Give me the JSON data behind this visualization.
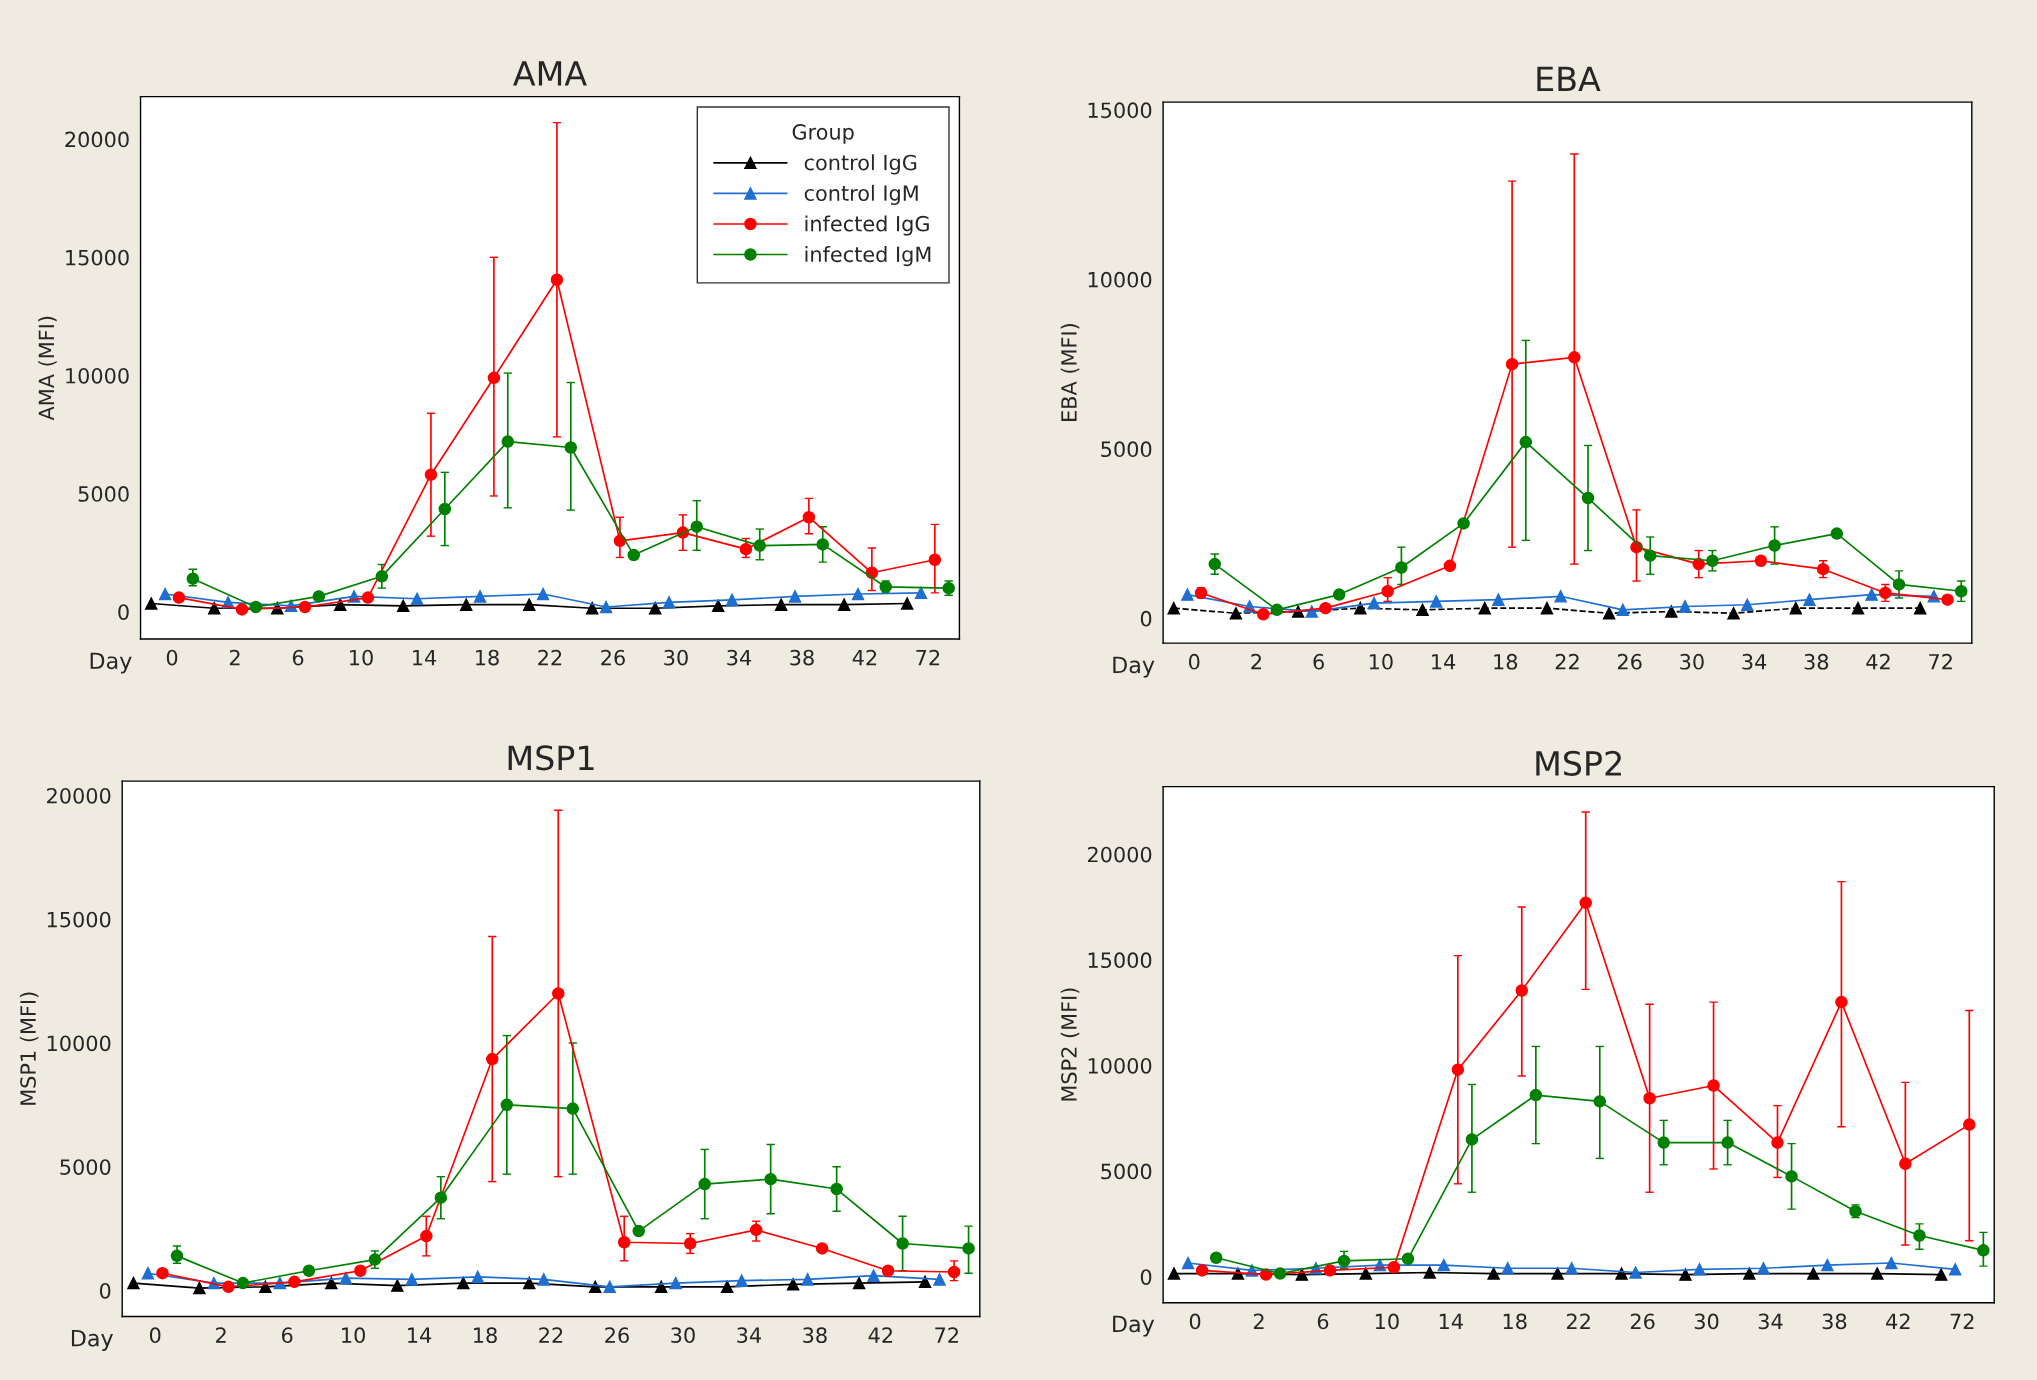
{
  "chart_data": [
    {
      "type": "line",
      "title": "AMA",
      "xlabel": "Day",
      "ylabel": "AMA (MFI)",
      "legend": "top right",
      "legend_title": "Group",
      "categories": [
        "0",
        "2",
        "6",
        "10",
        "14",
        "18",
        "22",
        "26",
        "30",
        "34",
        "38",
        "42",
        "72"
      ],
      "ylim": [
        -1150,
        21800
      ],
      "yticks": [
        0,
        5000,
        10000,
        15000,
        20000
      ],
      "series": [
        {
          "name": "control IgG",
          "color": "#000000",
          "marker": "triangle",
          "line_style": "solid",
          "values": [
            350,
            150,
            150,
            300,
            250,
            300,
            300,
            150,
            150,
            250,
            300,
            300,
            350
          ]
        },
        {
          "name": "control IgM",
          "color": "#1f6fd0",
          "marker": "triangle",
          "line_style": "solid",
          "values": [
            750,
            400,
            250,
            650,
            550,
            650,
            750,
            200,
            400,
            500,
            650,
            750,
            800
          ]
        },
        {
          "name": "infected IgG",
          "color": "#ff0000",
          "marker": "circle",
          "line_style": "solid",
          "values": [
            600,
            100,
            200,
            600,
            5800,
            9900,
            14050,
            3000,
            3350,
            2650,
            4000,
            1650,
            2200
          ],
          "errors": [
            null,
            null,
            null,
            null,
            [
              3200,
              8400
            ],
            [
              4900,
              15000
            ],
            [
              7400,
              20700
            ],
            [
              2300,
              4000
            ],
            [
              2600,
              4100
            ],
            [
              2300,
              3100
            ],
            [
              3300,
              4800
            ],
            [
              900,
              2700
            ],
            [
              800,
              3700
            ]
          ]
        },
        {
          "name": "infected IgM",
          "color": "#008000",
          "marker": "circle",
          "line_style": "solid",
          "values": [
            1400,
            200,
            650,
            1500,
            4350,
            7200,
            6950,
            2400,
            3600,
            2800,
            2850,
            1050,
            1000
          ],
          "errors": [
            [
              1100,
              1800
            ],
            null,
            null,
            [
              1000,
              2000
            ],
            [
              2800,
              5900
            ],
            [
              4400,
              10100
            ],
            [
              4300,
              9700
            ],
            null,
            [
              2600,
              4700
            ],
            [
              2200,
              3500
            ],
            [
              2100,
              3600
            ],
            [
              800,
              1300
            ],
            [
              700,
              1300
            ]
          ]
        }
      ]
    },
    {
      "type": "line",
      "title": "EBA",
      "xlabel": "Day",
      "ylabel": "EBA (MFI)",
      "legend": false,
      "categories": [
        "0",
        "2",
        "6",
        "10",
        "14",
        "18",
        "22",
        "26",
        "30",
        "34",
        "38",
        "42",
        "72"
      ],
      "ylim": [
        -730,
        15230
      ],
      "yticks": [
        0,
        5000,
        10000,
        15000
      ],
      "series": [
        {
          "color": "#000000",
          "marker": "triangle",
          "line_style": "dashed",
          "values": [
            300,
            150,
            200,
            300,
            250,
            300,
            300,
            150,
            200,
            150,
            300,
            300,
            300
          ]
        },
        {
          "color": "#1f6fd0",
          "marker": "triangle",
          "line_style": "solid",
          "values": [
            700,
            350,
            200,
            450,
            500,
            550,
            650,
            250,
            350,
            400,
            550,
            700,
            650
          ]
        },
        {
          "color": "#ff0000",
          "marker": "circle",
          "line_style": "solid",
          "values": [
            750,
            120,
            300,
            800,
            1550,
            7500,
            7700,
            2100,
            1600,
            1700,
            1450,
            750,
            550
          ],
          "errors": [
            [
              600,
              900
            ],
            null,
            null,
            [
              500,
              1200
            ],
            null,
            [
              2100,
              12900
            ],
            [
              1600,
              13700
            ],
            [
              1100,
              3200
            ],
            [
              1200,
              2000
            ],
            null,
            [
              1200,
              1700
            ],
            [
              500,
              1000
            ],
            null
          ]
        },
        {
          "color": "#008000",
          "marker": "circle",
          "line_style": "solid",
          "values": [
            1600,
            250,
            700,
            1500,
            2800,
            5200,
            3550,
            1850,
            1700,
            2150,
            2500,
            1000,
            800
          ],
          "errors": [
            [
              1300,
              1900
            ],
            null,
            null,
            [
              1000,
              2100
            ],
            null,
            [
              2300,
              8200
            ],
            [
              2000,
              5100
            ],
            [
              1300,
              2400
            ],
            [
              1400,
              2000
            ],
            [
              1600,
              2700
            ],
            null,
            [
              600,
              1400
            ],
            [
              500,
              1100
            ]
          ]
        }
      ]
    },
    {
      "type": "line",
      "title": "MSP1",
      "xlabel": "Day",
      "ylabel": "MSP1 (MFI)",
      "legend": false,
      "categories": [
        "0",
        "2",
        "6",
        "10",
        "14",
        "18",
        "22",
        "26",
        "30",
        "34",
        "38",
        "42",
        "72"
      ],
      "ylim": [
        -1050,
        20580
      ],
      "yticks": [
        0,
        5000,
        10000,
        15000,
        20000
      ],
      "series": [
        {
          "color": "#000000",
          "marker": "triangle",
          "line_style": "solid",
          "values": [
            300,
            100,
            150,
            300,
            200,
            300,
            300,
            150,
            150,
            150,
            250,
            300,
            350
          ]
        },
        {
          "color": "#1f6fd0",
          "marker": "triangle",
          "line_style": "solid",
          "values": [
            700,
            300,
            300,
            500,
            450,
            550,
            450,
            150,
            300,
            400,
            450,
            600,
            450
          ]
        },
        {
          "color": "#ff0000",
          "marker": "circle",
          "line_style": "solid",
          "values": [
            700,
            150,
            350,
            800,
            2200,
            9350,
            12000,
            1950,
            1900,
            2450,
            1700,
            800,
            750
          ],
          "errors": [
            null,
            null,
            null,
            null,
            [
              1400,
              3000
            ],
            [
              4400,
              14300
            ],
            [
              4600,
              19400
            ],
            [
              1200,
              3000
            ],
            [
              1500,
              2300
            ],
            [
              2000,
              2800
            ],
            null,
            null,
            [
              400,
              1200
            ]
          ]
        },
        {
          "color": "#008000",
          "marker": "circle",
          "line_style": "solid",
          "values": [
            1400,
            300,
            800,
            1250,
            3750,
            7500,
            7350,
            2400,
            4300,
            4500,
            4100,
            1900,
            1700
          ],
          "errors": [
            [
              1100,
              1800
            ],
            null,
            null,
            [
              900,
              1600
            ],
            [
              2900,
              4600
            ],
            [
              4700,
              10300
            ],
            [
              4700,
              10000
            ],
            null,
            [
              2900,
              5700
            ],
            [
              3100,
              5900
            ],
            [
              3200,
              5000
            ],
            [
              800,
              3000
            ],
            [
              700,
              2600
            ]
          ]
        }
      ]
    },
    {
      "type": "line",
      "title": "MSP2",
      "xlabel": "Day",
      "ylabel": "MSP2 (MFI)",
      "legend": false,
      "categories": [
        "0",
        "2",
        "6",
        "10",
        "14",
        "18",
        "22",
        "26",
        "30",
        "34",
        "38",
        "42",
        "72"
      ],
      "ylim": [
        -1230,
        23200
      ],
      "yticks": [
        0,
        5000,
        10000,
        15000,
        20000
      ],
      "series": [
        {
          "color": "#000000",
          "marker": "triangle",
          "line_style": "solid",
          "values": [
            150,
            150,
            100,
            150,
            200,
            150,
            150,
            150,
            100,
            150,
            150,
            150,
            100
          ]
        },
        {
          "color": "#1f6fd0",
          "marker": "triangle",
          "line_style": "solid",
          "values": [
            650,
            300,
            400,
            550,
            550,
            400,
            400,
            200,
            350,
            400,
            550,
            650,
            350
          ]
        },
        {
          "color": "#ff0000",
          "marker": "circle",
          "line_style": "solid",
          "values": [
            300,
            100,
            300,
            450,
            9800,
            13550,
            17700,
            8450,
            9050,
            6350,
            13000,
            5350,
            7200
          ],
          "errors": [
            null,
            null,
            null,
            null,
            [
              4400,
              15200
            ],
            [
              9500,
              17500
            ],
            [
              13600,
              22000
            ],
            [
              4000,
              12900
            ],
            [
              5100,
              13000
            ],
            [
              4700,
              8100
            ],
            [
              7100,
              18700
            ],
            [
              1500,
              9200
            ],
            [
              1700,
              12600
            ]
          ]
        },
        {
          "color": "#008000",
          "marker": "circle",
          "line_style": "solid",
          "values": [
            900,
            150,
            750,
            850,
            6500,
            8600,
            8300,
            6350,
            6350,
            4750,
            3100,
            1950,
            1250
          ],
          "errors": [
            null,
            null,
            [
              400,
              1200
            ],
            null,
            [
              4000,
              9100
            ],
            [
              6300,
              10900
            ],
            [
              5600,
              10900
            ],
            [
              5300,
              7400
            ],
            [
              5300,
              7400
            ],
            [
              3200,
              6300
            ],
            [
              2800,
              3400
            ],
            [
              1300,
              2500
            ],
            [
              500,
              2100
            ]
          ]
        }
      ]
    }
  ]
}
